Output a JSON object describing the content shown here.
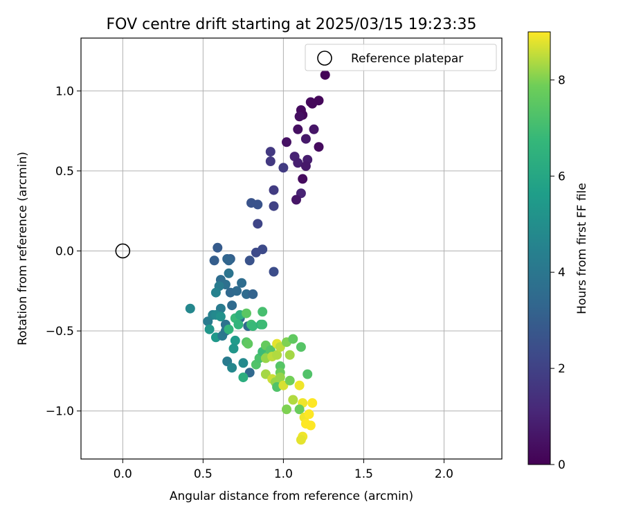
{
  "chart_data": {
    "type": "scatter",
    "title": "FOV centre drift starting at 2025/03/15 19:23:35",
    "xlabel": "Angular distance from reference (arcmin)",
    "ylabel": "Rotation from reference (arcmin)",
    "xlim": [
      -0.26,
      2.36
    ],
    "ylim": [
      -1.3,
      1.33
    ],
    "xticks": [
      0.0,
      0.5,
      1.0,
      1.5,
      2.0
    ],
    "xtick_labels": [
      "0.0",
      "0.5",
      "1.0",
      "1.5",
      "2.0"
    ],
    "yticks": [
      -1.0,
      -0.5,
      0.0,
      0.5,
      1.0
    ],
    "ytick_labels": [
      "−1.0",
      "−0.5",
      "0.0",
      "0.5",
      "1.0"
    ],
    "grid": true,
    "legend": {
      "placement": "top-right",
      "entries": [
        "Reference platepar"
      ]
    },
    "reference_point": {
      "x": 0.0,
      "y": 0.0
    },
    "colorbar": {
      "label": "Hours from first FF file",
      "range": [
        0,
        9
      ],
      "ticks": [
        0,
        2,
        4,
        6,
        8
      ],
      "colormap": "viridis"
    },
    "points": [
      {
        "x": 1.26,
        "y": 1.1,
        "t": 0.1
      },
      {
        "x": 1.22,
        "y": 0.94,
        "t": 0.2
      },
      {
        "x": 1.17,
        "y": 0.93,
        "t": 0.3
      },
      {
        "x": 1.18,
        "y": 0.92,
        "t": 0.2
      },
      {
        "x": 1.11,
        "y": 0.88,
        "t": 0.3
      },
      {
        "x": 1.12,
        "y": 0.85,
        "t": 0.2
      },
      {
        "x": 1.1,
        "y": 0.84,
        "t": 0.4
      },
      {
        "x": 1.19,
        "y": 0.76,
        "t": 0.6
      },
      {
        "x": 1.09,
        "y": 0.76,
        "t": 0.4
      },
      {
        "x": 1.14,
        "y": 0.7,
        "t": 0.7
      },
      {
        "x": 1.02,
        "y": 0.68,
        "t": 0.5
      },
      {
        "x": 1.22,
        "y": 0.65,
        "t": 0.3
      },
      {
        "x": 1.07,
        "y": 0.59,
        "t": 1.0
      },
      {
        "x": 1.15,
        "y": 0.57,
        "t": 0.8
      },
      {
        "x": 1.09,
        "y": 0.55,
        "t": 0.9
      },
      {
        "x": 1.14,
        "y": 0.53,
        "t": 0.7
      },
      {
        "x": 1.12,
        "y": 0.45,
        "t": 0.3
      },
      {
        "x": 1.11,
        "y": 0.36,
        "t": 1.0
      },
      {
        "x": 1.08,
        "y": 0.32,
        "t": 0.6
      },
      {
        "x": 0.92,
        "y": 0.62,
        "t": 1.7
      },
      {
        "x": 0.92,
        "y": 0.56,
        "t": 1.7
      },
      {
        "x": 1.0,
        "y": 0.52,
        "t": 1.8
      },
      {
        "x": 0.94,
        "y": 0.38,
        "t": 1.8
      },
      {
        "x": 0.94,
        "y": 0.28,
        "t": 2.0
      },
      {
        "x": 0.8,
        "y": 0.3,
        "t": 2.6
      },
      {
        "x": 0.84,
        "y": 0.29,
        "t": 2.6
      },
      {
        "x": 0.84,
        "y": 0.17,
        "t": 2.1
      },
      {
        "x": 0.87,
        "y": 0.01,
        "t": 2.3
      },
      {
        "x": 0.83,
        "y": -0.01,
        "t": 2.3
      },
      {
        "x": 0.79,
        "y": -0.06,
        "t": 2.6
      },
      {
        "x": 0.94,
        "y": -0.13,
        "t": 2.4
      },
      {
        "x": 0.59,
        "y": 0.02,
        "t": 2.9
      },
      {
        "x": 0.57,
        "y": -0.06,
        "t": 3.0
      },
      {
        "x": 0.65,
        "y": -0.05,
        "t": 3.3
      },
      {
        "x": 0.67,
        "y": -0.05,
        "t": 3.1
      },
      {
        "x": 0.66,
        "y": -0.06,
        "t": 3.3
      },
      {
        "x": 0.61,
        "y": -0.18,
        "t": 3.6
      },
      {
        "x": 0.66,
        "y": -0.14,
        "t": 3.9
      },
      {
        "x": 0.64,
        "y": -0.21,
        "t": 3.7
      },
      {
        "x": 0.67,
        "y": -0.26,
        "t": 3.4
      },
      {
        "x": 0.71,
        "y": -0.25,
        "t": 3.5
      },
      {
        "x": 0.74,
        "y": -0.2,
        "t": 3.6
      },
      {
        "x": 0.77,
        "y": -0.27,
        "t": 3.5
      },
      {
        "x": 0.81,
        "y": -0.27,
        "t": 3.2
      },
      {
        "x": 0.68,
        "y": -0.34,
        "t": 3.5
      },
      {
        "x": 0.73,
        "y": -0.42,
        "t": 3.6
      },
      {
        "x": 0.78,
        "y": -0.47,
        "t": 3.5
      },
      {
        "x": 0.6,
        "y": -0.22,
        "t": 4.2
      },
      {
        "x": 0.58,
        "y": -0.26,
        "t": 4.5
      },
      {
        "x": 0.61,
        "y": -0.36,
        "t": 4.2
      },
      {
        "x": 0.64,
        "y": -0.46,
        "t": 3.8
      },
      {
        "x": 0.42,
        "y": -0.36,
        "t": 4.7
      },
      {
        "x": 0.53,
        "y": -0.44,
        "t": 4.2
      },
      {
        "x": 0.56,
        "y": -0.4,
        "t": 4.5
      },
      {
        "x": 0.58,
        "y": -0.4,
        "t": 4.8
      },
      {
        "x": 0.61,
        "y": -0.41,
        "t": 5.1
      },
      {
        "x": 0.54,
        "y": -0.49,
        "t": 5.3
      },
      {
        "x": 0.58,
        "y": -0.54,
        "t": 5.4
      },
      {
        "x": 0.62,
        "y": -0.53,
        "t": 4.1
      },
      {
        "x": 0.64,
        "y": -0.5,
        "t": 4.0
      },
      {
        "x": 0.7,
        "y": -0.56,
        "t": 5.5
      },
      {
        "x": 0.69,
        "y": -0.61,
        "t": 5.3
      },
      {
        "x": 0.65,
        "y": -0.69,
        "t": 4.2
      },
      {
        "x": 0.68,
        "y": -0.73,
        "t": 4.7
      },
      {
        "x": 0.75,
        "y": -0.7,
        "t": 4.8
      },
      {
        "x": 0.79,
        "y": -0.76,
        "t": 3.4
      },
      {
        "x": 0.75,
        "y": -0.79,
        "t": 6.3
      },
      {
        "x": 0.66,
        "y": -0.49,
        "t": 6.6
      },
      {
        "x": 0.7,
        "y": -0.42,
        "t": 6.8
      },
      {
        "x": 0.72,
        "y": -0.46,
        "t": 6.6
      },
      {
        "x": 0.73,
        "y": -0.4,
        "t": 6.4
      },
      {
        "x": 0.77,
        "y": -0.39,
        "t": 7.5
      },
      {
        "x": 0.8,
        "y": -0.46,
        "t": 7.0
      },
      {
        "x": 0.81,
        "y": -0.47,
        "t": 6.8
      },
      {
        "x": 0.86,
        "y": -0.46,
        "t": 6.6
      },
      {
        "x": 0.87,
        "y": -0.46,
        "t": 6.9
      },
      {
        "x": 0.87,
        "y": -0.38,
        "t": 7.1
      },
      {
        "x": 0.77,
        "y": -0.57,
        "t": 7.4
      },
      {
        "x": 0.78,
        "y": -0.58,
        "t": 7.6
      },
      {
        "x": 0.83,
        "y": -0.71,
        "t": 7.3
      },
      {
        "x": 0.85,
        "y": -0.67,
        "t": 7.2
      },
      {
        "x": 0.87,
        "y": -0.63,
        "t": 6.9
      },
      {
        "x": 0.89,
        "y": -0.59,
        "t": 7.7
      },
      {
        "x": 0.9,
        "y": -0.66,
        "t": 7.5
      },
      {
        "x": 0.92,
        "y": -0.62,
        "t": 7.4
      },
      {
        "x": 0.89,
        "y": -0.67,
        "t": 8.2
      },
      {
        "x": 0.93,
        "y": -0.66,
        "t": 8.5
      },
      {
        "x": 0.96,
        "y": -0.65,
        "t": 8.4
      },
      {
        "x": 0.96,
        "y": -0.58,
        "t": 8.8
      },
      {
        "x": 0.98,
        "y": -0.6,
        "t": 8.5
      },
      {
        "x": 1.02,
        "y": -0.57,
        "t": 8.0
      },
      {
        "x": 1.06,
        "y": -0.55,
        "t": 7.6
      },
      {
        "x": 1.04,
        "y": -0.65,
        "t": 8.3
      },
      {
        "x": 1.11,
        "y": -0.6,
        "t": 7.4
      },
      {
        "x": 0.89,
        "y": -0.77,
        "t": 8.3
      },
      {
        "x": 0.93,
        "y": -0.8,
        "t": 8.6
      },
      {
        "x": 0.95,
        "y": -0.82,
        "t": 8.2
      },
      {
        "x": 0.96,
        "y": -0.85,
        "t": 7.3
      },
      {
        "x": 0.98,
        "y": -0.72,
        "t": 7.4
      },
      {
        "x": 0.98,
        "y": -0.76,
        "t": 7.8
      },
      {
        "x": 0.98,
        "y": -0.79,
        "t": 8.2
      },
      {
        "x": 1.0,
        "y": -0.84,
        "t": 8.7
      },
      {
        "x": 1.04,
        "y": -0.81,
        "t": 7.9
      },
      {
        "x": 1.15,
        "y": -0.77,
        "t": 7.3
      },
      {
        "x": 1.1,
        "y": -0.84,
        "t": 8.9
      },
      {
        "x": 1.06,
        "y": -0.93,
        "t": 8.4
      },
      {
        "x": 1.12,
        "y": -0.95,
        "t": 8.9
      },
      {
        "x": 1.18,
        "y": -0.95,
        "t": 9.0
      },
      {
        "x": 1.02,
        "y": -0.99,
        "t": 8.0
      },
      {
        "x": 1.1,
        "y": -0.99,
        "t": 7.8
      },
      {
        "x": 1.13,
        "y": -1.04,
        "t": 8.9
      },
      {
        "x": 1.16,
        "y": -1.02,
        "t": 9.0
      },
      {
        "x": 1.14,
        "y": -1.08,
        "t": 9.0
      },
      {
        "x": 1.17,
        "y": -1.09,
        "t": 9.0
      },
      {
        "x": 1.12,
        "y": -1.16,
        "t": 8.9
      },
      {
        "x": 1.11,
        "y": -1.18,
        "t": 8.8
      }
    ]
  }
}
